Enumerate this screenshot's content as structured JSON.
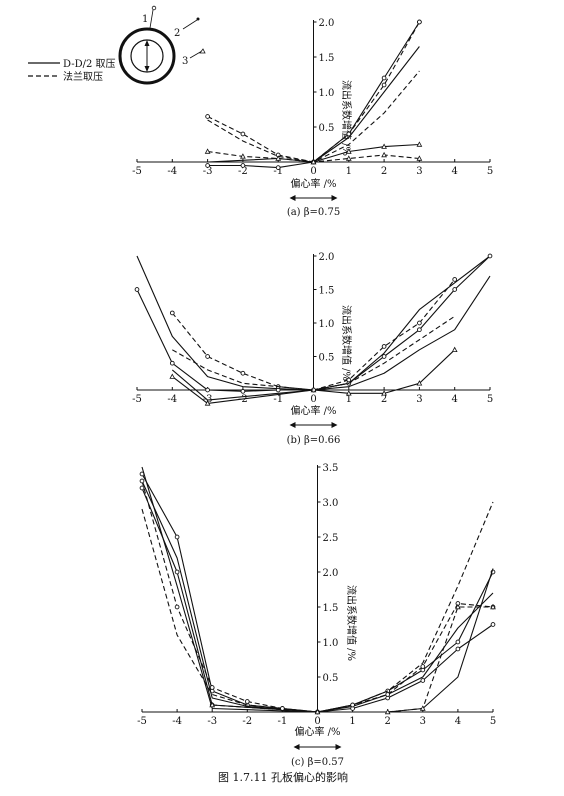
{
  "figure_caption": "图 1.7.11  孔板偏心的影响",
  "legend": {
    "solid": "D-D/2 取压",
    "dashed": "法兰取压"
  },
  "inset_labels": [
    "1",
    "2",
    "3"
  ],
  "chart_data": [
    {
      "type": "line",
      "caption": "(a) β=0.75",
      "xlabel": "偏心率 /%",
      "ylabel": "流出系数增值 /%",
      "xlim": [
        -5,
        5
      ],
      "ylim": [
        -0.1,
        2.0
      ],
      "x_ticks": [
        "-5",
        "-4",
        "-3",
        "-2",
        "-1",
        "0",
        "1",
        "2",
        "3",
        "4",
        "5"
      ],
      "y_ticks": [
        "0.5",
        "1.0",
        "1.5",
        "2.0"
      ],
      "grid": false,
      "series": [
        {
          "style": "solid",
          "marker": "circle",
          "points": [
            [
              0,
              0
            ],
            [
              1,
              0.4
            ],
            [
              2,
              1.2
            ],
            [
              3,
              2.0
            ]
          ]
        },
        {
          "style": "solid",
          "marker": "none",
          "points": [
            [
              0,
              0
            ],
            [
              1,
              0.35
            ],
            [
              2,
              1.0
            ],
            [
              3,
              1.65
            ]
          ]
        },
        {
          "style": "solid",
          "marker": "triangle",
          "points": [
            [
              0,
              0
            ],
            [
              1,
              0.15
            ],
            [
              2,
              0.22
            ],
            [
              3,
              0.25
            ]
          ]
        },
        {
          "style": "solid",
          "marker": "circle",
          "points": [
            [
              -3,
              -0.05
            ],
            [
              -2,
              -0.05
            ],
            [
              -1,
              -0.08
            ],
            [
              0,
              0
            ]
          ]
        },
        {
          "style": "solid",
          "marker": "none",
          "points": [
            [
              -3,
              0.0
            ],
            [
              -1,
              0.05
            ],
            [
              0,
              0
            ]
          ]
        },
        {
          "style": "dashed",
          "marker": "circle",
          "points": [
            [
              -3,
              0.65
            ],
            [
              -2,
              0.4
            ],
            [
              -1,
              0.1
            ],
            [
              0,
              0
            ],
            [
              1,
              0.4
            ],
            [
              2,
              1.1
            ],
            [
              3,
              2.0
            ]
          ]
        },
        {
          "style": "dashed",
          "marker": "none",
          "points": [
            [
              -3,
              0.6
            ],
            [
              -2,
              0.3
            ],
            [
              -1,
              0.08
            ],
            [
              0,
              0
            ],
            [
              1,
              0.25
            ],
            [
              2,
              0.7
            ],
            [
              3,
              1.3
            ]
          ]
        },
        {
          "style": "dashed",
          "marker": "triangle",
          "points": [
            [
              -3,
              0.15
            ],
            [
              -2,
              0.08
            ],
            [
              -1,
              0.05
            ],
            [
              0,
              0
            ],
            [
              1,
              0.05
            ],
            [
              2,
              0.1
            ],
            [
              3,
              0.05
            ]
          ]
        }
      ]
    },
    {
      "type": "line",
      "caption": "(b) β=0.66",
      "xlabel": "偏心率 /%",
      "ylabel": "流出系数增值 /%",
      "xlim": [
        -5,
        5
      ],
      "ylim": [
        -0.25,
        2.0
      ],
      "x_ticks": [
        "-5",
        "-4",
        "-3",
        "-2",
        "-1",
        "0",
        "1",
        "2",
        "3",
        "4",
        "5"
      ],
      "y_ticks": [
        "0.5",
        "1.0",
        "1.5",
        "2.0"
      ],
      "grid": false,
      "series": [
        {
          "style": "solid",
          "marker": "none",
          "points": [
            [
              -5,
              2.0
            ],
            [
              -4,
              0.8
            ],
            [
              -3,
              0.2
            ],
            [
              -2,
              0.05
            ],
            [
              -1,
              0.02
            ],
            [
              0,
              0
            ],
            [
              1,
              0.1
            ],
            [
              2,
              0.55
            ],
            [
              3,
              1.2
            ],
            [
              4,
              1.6
            ],
            [
              5,
              2.0
            ]
          ]
        },
        {
          "style": "solid",
          "marker": "circle",
          "points": [
            [
              -5,
              1.5
            ],
            [
              -4,
              0.4
            ],
            [
              -3,
              0.0
            ],
            [
              -2,
              -0.02
            ],
            [
              -1,
              0.0
            ],
            [
              0,
              0
            ],
            [
              1,
              0.1
            ],
            [
              2,
              0.5
            ],
            [
              3,
              0.9
            ],
            [
              4,
              1.5
            ],
            [
              5,
              2.0
            ]
          ]
        },
        {
          "style": "solid",
          "marker": "none",
          "points": [
            [
              -4,
              0.3
            ],
            [
              -3,
              -0.15
            ],
            [
              -2,
              -0.1
            ],
            [
              -1,
              -0.05
            ],
            [
              0,
              0
            ],
            [
              1,
              0.05
            ],
            [
              2,
              0.25
            ],
            [
              3,
              0.6
            ],
            [
              4,
              0.9
            ],
            [
              5,
              1.7
            ]
          ]
        },
        {
          "style": "solid",
          "marker": "triangle",
          "points": [
            [
              -4,
              0.2
            ],
            [
              -3,
              -0.2
            ],
            [
              0,
              0
            ],
            [
              1,
              -0.05
            ],
            [
              2,
              -0.05
            ],
            [
              3,
              0.1
            ],
            [
              4,
              0.6
            ]
          ]
        },
        {
          "style": "dashed",
          "marker": "circle",
          "points": [
            [
              -4,
              1.15
            ],
            [
              -3,
              0.5
            ],
            [
              -2,
              0.25
            ],
            [
              -1,
              0.05
            ],
            [
              0,
              0
            ],
            [
              1,
              0.15
            ],
            [
              2,
              0.65
            ],
            [
              3,
              1.0
            ],
            [
              4,
              1.65
            ]
          ]
        },
        {
          "style": "dashed",
          "marker": "none",
          "points": [
            [
              -4,
              0.6
            ],
            [
              -3,
              0.3
            ],
            [
              -2,
              0.1
            ],
            [
              0,
              0
            ],
            [
              1,
              0.1
            ],
            [
              2,
              0.4
            ],
            [
              3,
              0.75
            ],
            [
              4,
              1.1
            ]
          ]
        }
      ]
    },
    {
      "type": "line",
      "caption": "(c) β=0.57",
      "xlabel": "偏心率 /%",
      "ylabel": "流出系数增值 /%",
      "xlim": [
        -5,
        5
      ],
      "ylim": [
        -0.05,
        3.5
      ],
      "x_ticks": [
        "-5",
        "-4",
        "-3",
        "-2",
        "-1",
        "0",
        "1",
        "2",
        "3",
        "4",
        "5"
      ],
      "y_ticks": [
        "0.5",
        "1.0",
        "1.5",
        "2.0",
        "2.5",
        "3.0",
        "3.5"
      ],
      "grid": false,
      "series": [
        {
          "style": "solid",
          "marker": "circle",
          "points": [
            [
              -5,
              3.4
            ],
            [
              -4,
              2.5
            ],
            [
              -3,
              0.3
            ],
            [
              -2,
              0.1
            ],
            [
              -1,
              0.05
            ],
            [
              0,
              0
            ],
            [
              1,
              0.1
            ],
            [
              2,
              0.3
            ],
            [
              3,
              0.6
            ],
            [
              4,
              1.0
            ],
            [
              5,
              2.0
            ]
          ]
        },
        {
          "style": "solid",
          "marker": "none",
          "points": [
            [
              -5,
              3.3
            ],
            [
              -4,
              2.2
            ],
            [
              -3,
              0.2
            ],
            [
              -2,
              0.08
            ],
            [
              0,
              0
            ],
            [
              1,
              0.08
            ],
            [
              2,
              0.25
            ],
            [
              3,
              0.5
            ],
            [
              4,
              1.2
            ],
            [
              5,
              1.7
            ]
          ]
        },
        {
          "style": "solid",
          "marker": "circle",
          "points": [
            [
              -5,
              3.2
            ],
            [
              -4,
              2.0
            ],
            [
              -3,
              0.1
            ],
            [
              0,
              0
            ],
            [
              1,
              0.05
            ],
            [
              2,
              0.2
            ],
            [
              3,
              0.45
            ],
            [
              4,
              0.9
            ],
            [
              5,
              1.25
            ]
          ]
        },
        {
          "style": "solid",
          "marker": "none",
          "points": [
            [
              -5,
              3.5
            ],
            [
              -4,
              1.8
            ],
            [
              -3,
              0.05
            ],
            [
              0,
              0
            ],
            [
              2,
              0.0
            ],
            [
              3,
              0.05
            ],
            [
              4,
              0.5
            ],
            [
              5,
              2.05
            ]
          ]
        },
        {
          "style": "dashed",
          "marker": "none",
          "points": [
            [
              -5,
              2.9
            ],
            [
              -4,
              1.1
            ],
            [
              -3,
              0.25
            ],
            [
              -2,
              0.1
            ],
            [
              0,
              0
            ],
            [
              1,
              0.1
            ],
            [
              2,
              0.3
            ],
            [
              3,
              0.7
            ],
            [
              4,
              1.8
            ],
            [
              5,
              3.0
            ]
          ]
        },
        {
          "style": "dashed",
          "marker": "circle",
          "points": [
            [
              -5,
              3.3
            ],
            [
              -4,
              1.5
            ],
            [
              -3,
              0.35
            ],
            [
              -2,
              0.15
            ],
            [
              -1,
              0.05
            ],
            [
              0,
              0
            ],
            [
              1,
              0.1
            ],
            [
              2,
              0.25
            ],
            [
              3,
              0.65
            ],
            [
              4,
              1.55
            ],
            [
              5,
              1.5
            ]
          ]
        },
        {
          "style": "dashed",
          "marker": "triangle",
          "points": [
            [
              -3,
              0.1
            ],
            [
              0,
              0
            ],
            [
              2,
              0.0
            ],
            [
              3,
              0.05
            ],
            [
              4,
              1.5
            ],
            [
              5,
              1.5
            ]
          ]
        }
      ]
    }
  ]
}
